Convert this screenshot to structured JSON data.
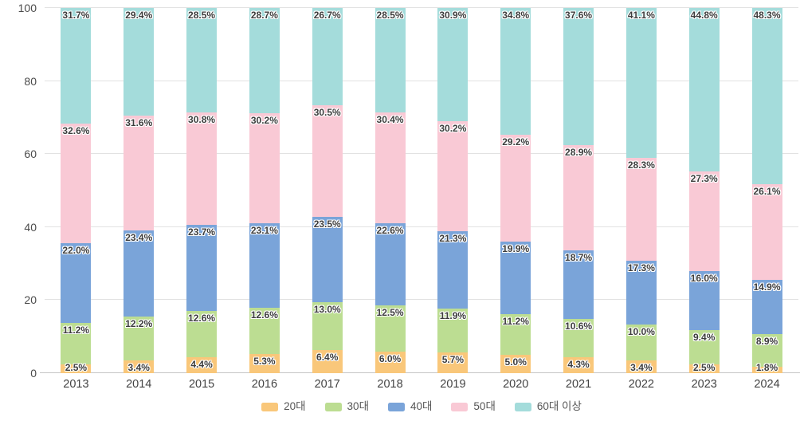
{
  "chart_data": {
    "type": "bar",
    "stacked": true,
    "orientation": "vertical",
    "title": "",
    "xlabel": "",
    "ylabel": "",
    "unit": "%",
    "categories": [
      "2013",
      "2014",
      "2015",
      "2016",
      "2017",
      "2018",
      "2019",
      "2020",
      "2021",
      "2022",
      "2023",
      "2024"
    ],
    "series": [
      {
        "name": "20대",
        "color": "#F9C77A",
        "values": [
          2.5,
          3.4,
          4.4,
          5.3,
          6.4,
          6.0,
          5.7,
          5.0,
          4.3,
          3.4,
          2.5,
          1.8
        ]
      },
      {
        "name": "30대",
        "color": "#BCDD92",
        "values": [
          11.2,
          12.2,
          12.6,
          12.6,
          13.0,
          12.5,
          11.9,
          11.2,
          10.6,
          10.0,
          9.4,
          8.9
        ]
      },
      {
        "name": "40대",
        "color": "#7AA4D9",
        "values": [
          22.0,
          23.4,
          23.7,
          23.1,
          23.5,
          22.6,
          21.3,
          19.9,
          18.7,
          17.3,
          16.0,
          14.9
        ]
      },
      {
        "name": "50대",
        "color": "#F9C9D5",
        "values": [
          32.6,
          31.6,
          30.8,
          30.2,
          30.5,
          30.4,
          30.2,
          29.2,
          28.9,
          28.3,
          27.3,
          26.1
        ]
      },
      {
        "name": "60대 이상",
        "color": "#A4DCDB",
        "values": [
          31.7,
          29.4,
          28.5,
          28.7,
          26.7,
          28.5,
          30.9,
          34.8,
          37.6,
          41.1,
          44.8,
          48.3
        ]
      }
    ],
    "data_label_suffix": "%",
    "data_label_decimals": 1,
    "ylim": [
      0,
      100
    ],
    "yticks": [
      0,
      20,
      40,
      60,
      80,
      100
    ],
    "grid": "horizontal",
    "legend_position": "bottom"
  },
  "style": {
    "background": "#FFFFFF",
    "gridline_color": "#E2E2E2",
    "axis_line_color": "#C6C6C6",
    "tick_text_color": "#4B4B4B",
    "data_label_color": "#3D3D3D"
  }
}
